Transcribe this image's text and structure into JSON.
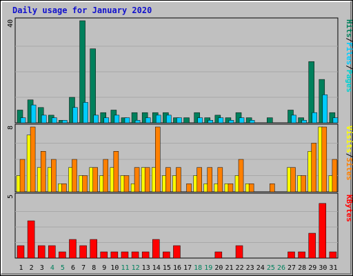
{
  "title": "Daily usage for January 2020",
  "colors": {
    "title": "#1111cc",
    "background": "#c0c0c0",
    "hits": "#00805c",
    "files": "#00ccff",
    "pages": "#00d0d0",
    "visits": "#ffff00",
    "sites": "#ff8000",
    "kbytes": "#ff0000",
    "weekend_day": "#00805c",
    "weekday": "#000000"
  },
  "chart_data": [
    {
      "type": "bar",
      "name": "hits-files-pages",
      "ylim": [
        0,
        40
      ],
      "ymax_label": "40",
      "legend": [
        "Pages",
        "Files",
        "Hits"
      ],
      "legend_separator": "/",
      "categories": [
        "1",
        "2",
        "3",
        "4",
        "5",
        "6",
        "7",
        "8",
        "9",
        "10",
        "11",
        "12",
        "13",
        "14",
        "15",
        "16",
        "17",
        "18",
        "19",
        "20",
        "21",
        "22",
        "23",
        "24",
        "25",
        "26",
        "27",
        "28",
        "29",
        "30",
        "31"
      ],
      "series": [
        {
          "name": "Hits",
          "values": [
            5,
            9,
            6,
            3,
            1,
            10,
            40,
            29,
            4,
            5,
            2,
            4,
            4,
            4,
            4,
            2,
            2,
            4,
            2,
            3,
            2,
            4,
            2,
            0,
            2,
            0,
            5,
            2,
            24,
            17,
            4
          ]
        },
        {
          "name": "Files",
          "values": [
            2,
            7,
            3,
            2,
            1,
            6,
            8,
            3,
            2,
            3,
            2,
            1,
            2,
            3,
            3,
            2,
            0,
            2,
            1,
            2,
            1,
            2,
            1,
            0,
            0,
            0,
            3,
            1,
            4,
            11,
            2
          ]
        },
        {
          "name": "Pages",
          "values": [
            2,
            7,
            3,
            2,
            1,
            6,
            8,
            3,
            2,
            3,
            2,
            1,
            2,
            3,
            3,
            2,
            0,
            2,
            1,
            2,
            1,
            2,
            1,
            0,
            0,
            0,
            3,
            1,
            4,
            11,
            2
          ]
        }
      ]
    },
    {
      "type": "bar",
      "name": "visits-sites",
      "ylim": [
        0,
        8
      ],
      "ymax_label": "8",
      "legend": [
        "Sites",
        "Visits"
      ],
      "legend_separator": "/",
      "categories": [
        "1",
        "2",
        "3",
        "4",
        "5",
        "6",
        "7",
        "8",
        "9",
        "10",
        "11",
        "12",
        "13",
        "14",
        "15",
        "16",
        "17",
        "18",
        "19",
        "20",
        "21",
        "22",
        "23",
        "24",
        "25",
        "26",
        "27",
        "28",
        "29",
        "30",
        "31"
      ],
      "series": [
        {
          "name": "Visits",
          "values": [
            2,
            7,
            3,
            3,
            1,
            3,
            2,
            3,
            2,
            3,
            2,
            1,
            3,
            3,
            2,
            2,
            0,
            2,
            1,
            1,
            1,
            2,
            1,
            0,
            0,
            0,
            3,
            2,
            5,
            8,
            2
          ]
        },
        {
          "name": "Sites",
          "values": [
            4,
            8,
            5,
            4,
            1,
            4,
            2,
            3,
            4,
            5,
            2,
            3,
            3,
            8,
            3,
            3,
            1,
            3,
            3,
            3,
            1,
            4,
            1,
            0,
            1,
            0,
            3,
            2,
            6,
            8,
            4
          ]
        }
      ]
    },
    {
      "type": "bar",
      "name": "kbytes",
      "ylim": [
        0,
        5
      ],
      "ymax_label": "5",
      "legend": [
        "KBytes"
      ],
      "categories": [
        "1",
        "2",
        "3",
        "4",
        "5",
        "6",
        "7",
        "8",
        "9",
        "10",
        "11",
        "12",
        "13",
        "14",
        "15",
        "16",
        "17",
        "18",
        "19",
        "20",
        "21",
        "22",
        "23",
        "24",
        "25",
        "26",
        "27",
        "28",
        "29",
        "30",
        "31"
      ],
      "series": [
        {
          "name": "KBytes",
          "values": [
            1,
            3,
            1,
            1,
            0.5,
            1.5,
            1,
            1.5,
            0.5,
            0.5,
            0.5,
            0.5,
            0.5,
            1.5,
            0.5,
            1,
            0,
            0,
            0,
            0.5,
            0,
            1,
            0,
            0,
            0,
            0,
            0.5,
            0.5,
            2,
            4.4,
            0.5
          ]
        }
      ]
    }
  ],
  "weekend_days": [
    "4",
    "5",
    "11",
    "12",
    "18",
    "19",
    "25",
    "26"
  ]
}
